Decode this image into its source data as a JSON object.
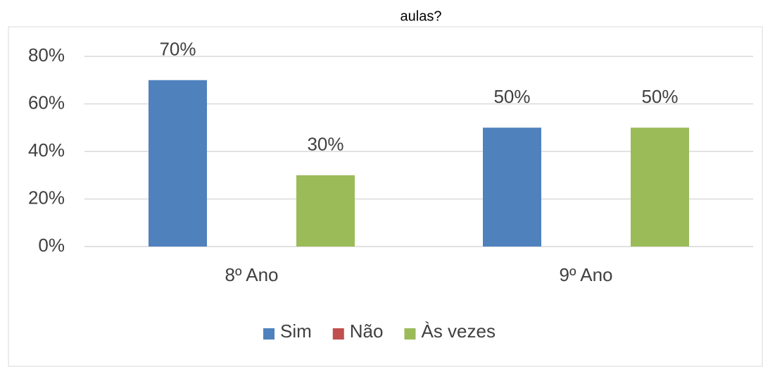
{
  "chart_data": {
    "type": "bar",
    "title": "aulas?",
    "categories": [
      "8º Ano",
      "9º Ano"
    ],
    "series": [
      {
        "name": "Sim",
        "color": "#4f81bd",
        "values": [
          70,
          50
        ],
        "value_labels": [
          "70%",
          "50%"
        ]
      },
      {
        "name": "Não",
        "color": "#c0504d",
        "values": [
          0,
          0
        ]
      },
      {
        "name": "Às vezes",
        "color": "#9bbb59",
        "values": [
          30,
          50
        ],
        "value_labels": [
          "30%",
          "50%"
        ]
      }
    ],
    "ylim": [
      0,
      80
    ],
    "yticks": [
      {
        "value": 0,
        "label": "0%"
      },
      {
        "value": 20,
        "label": "20%"
      },
      {
        "value": 40,
        "label": "40%"
      },
      {
        "value": 60,
        "label": "60%"
      },
      {
        "value": 80,
        "label": "80%"
      }
    ],
    "grid": true,
    "legend": "bottom"
  }
}
